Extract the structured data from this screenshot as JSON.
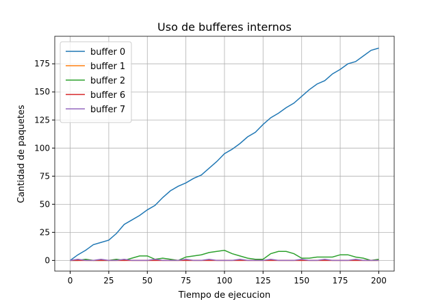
{
  "chart_data": {
    "type": "line",
    "title": "Uso de bufferes internos",
    "x_label": "Tiempo de ejecucion",
    "y_label": "Cantidad de paquetes",
    "x": [
      0,
      5,
      10,
      15,
      20,
      25,
      30,
      35,
      40,
      45,
      50,
      55,
      60,
      65,
      70,
      75,
      80,
      85,
      90,
      95,
      100,
      105,
      110,
      115,
      120,
      125,
      130,
      135,
      140,
      145,
      150,
      155,
      160,
      165,
      170,
      175,
      180,
      185,
      190,
      195,
      200
    ],
    "series": [
      {
        "name": "buffer 0",
        "color": "#1f77b4",
        "values": [
          0,
          5,
          9,
          14,
          16,
          18,
          24,
          32,
          36,
          40,
          45,
          49,
          56,
          62,
          66,
          69,
          73,
          76,
          82,
          88,
          95,
          99,
          104,
          110,
          114,
          121,
          127,
          131,
          136,
          140,
          146,
          152,
          157,
          160,
          166,
          170,
          175,
          177,
          182,
          187,
          189
        ]
      },
      {
        "name": "buffer 1",
        "color": "#ff7f0e",
        "values": [
          0,
          0,
          0,
          0,
          0,
          0,
          0,
          0,
          0,
          0,
          0,
          0,
          0,
          0,
          0,
          0,
          0,
          0,
          0,
          0,
          0,
          0,
          0,
          0,
          0,
          0,
          0,
          0,
          0,
          0,
          0,
          0,
          0,
          0,
          0,
          0,
          0,
          0,
          0,
          0,
          0
        ]
      },
      {
        "name": "buffer 2",
        "color": "#2ca02c",
        "values": [
          0,
          0,
          1,
          0,
          0,
          0,
          1,
          0,
          2,
          4,
          4,
          1,
          2,
          1,
          0,
          3,
          4,
          5,
          7,
          8,
          9,
          6,
          4,
          2,
          1,
          1,
          6,
          8,
          8,
          6,
          2,
          2,
          3,
          3,
          3,
          5,
          5,
          3,
          2,
          0,
          1
        ]
      },
      {
        "name": "buffer 6",
        "color": "#d62728",
        "values": [
          0,
          0,
          0,
          0,
          0,
          0,
          0,
          0,
          0,
          0,
          0,
          0,
          0,
          0,
          0,
          0,
          0,
          0,
          0,
          0,
          0,
          0,
          0,
          0,
          0,
          0,
          0,
          0,
          0,
          0,
          0,
          0,
          0,
          0,
          0,
          0,
          0,
          0,
          0,
          0,
          0
        ]
      },
      {
        "name": "buffer 7",
        "color": "#9467bd",
        "values": [
          0,
          1,
          0,
          0,
          1,
          0,
          0,
          1,
          0,
          0,
          0,
          1,
          0,
          0,
          0,
          1,
          0,
          0,
          1,
          0,
          0,
          0,
          1,
          0,
          0,
          0,
          1,
          0,
          0,
          0,
          1,
          0,
          0,
          1,
          0,
          0,
          0,
          1,
          0,
          0,
          0
        ]
      }
    ],
    "xlim": [
      -10,
      210
    ],
    "xticks": [
      0,
      25,
      50,
      75,
      100,
      125,
      150,
      175,
      200
    ],
    "ylim": [
      -9.5,
      199.5
    ],
    "yticks": [
      0,
      25,
      50,
      75,
      100,
      125,
      150,
      175
    ],
    "grid": true,
    "legend": "upper left"
  }
}
